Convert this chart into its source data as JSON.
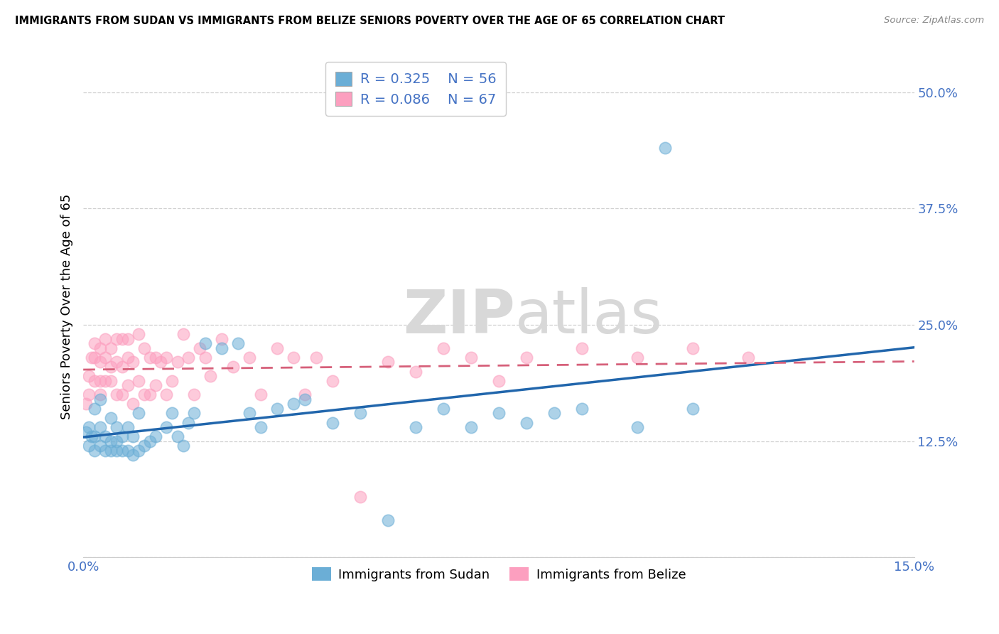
{
  "title": "IMMIGRANTS FROM SUDAN VS IMMIGRANTS FROM BELIZE SENIORS POVERTY OVER THE AGE OF 65 CORRELATION CHART",
  "source": "Source: ZipAtlas.com",
  "ylabel": "Seniors Poverty Over the Age of 65",
  "xlim": [
    0.0,
    0.15
  ],
  "ylim": [
    0.0,
    0.54
  ],
  "yticks": [
    0.0,
    0.125,
    0.25,
    0.375,
    0.5
  ],
  "ytick_labels": [
    "",
    "12.5%",
    "25.0%",
    "37.5%",
    "50.0%"
  ],
  "legend_R_sudan": "0.325",
  "legend_N_sudan": "56",
  "legend_R_belize": "0.086",
  "legend_N_belize": "67",
  "sudan_color": "#6baed6",
  "belize_color": "#fc9fbf",
  "sudan_line_color": "#2166ac",
  "belize_line_color": "#d6607a",
  "watermark": "ZIPatlas",
  "background_color": "#ffffff",
  "sudan_x": [
    0.0005,
    0.001,
    0.001,
    0.0015,
    0.002,
    0.002,
    0.002,
    0.003,
    0.003,
    0.003,
    0.004,
    0.004,
    0.005,
    0.005,
    0.005,
    0.006,
    0.006,
    0.006,
    0.007,
    0.007,
    0.008,
    0.008,
    0.009,
    0.009,
    0.01,
    0.01,
    0.011,
    0.012,
    0.013,
    0.015,
    0.016,
    0.017,
    0.018,
    0.019,
    0.02,
    0.022,
    0.025,
    0.028,
    0.03,
    0.032,
    0.035,
    0.038,
    0.04,
    0.045,
    0.05,
    0.055,
    0.06,
    0.065,
    0.07,
    0.075,
    0.08,
    0.085,
    0.09,
    0.1,
    0.105,
    0.11
  ],
  "sudan_y": [
    0.135,
    0.12,
    0.14,
    0.13,
    0.115,
    0.13,
    0.16,
    0.12,
    0.14,
    0.17,
    0.115,
    0.13,
    0.115,
    0.125,
    0.15,
    0.115,
    0.125,
    0.14,
    0.115,
    0.13,
    0.115,
    0.14,
    0.11,
    0.13,
    0.115,
    0.155,
    0.12,
    0.125,
    0.13,
    0.14,
    0.155,
    0.13,
    0.12,
    0.145,
    0.155,
    0.23,
    0.225,
    0.23,
    0.155,
    0.14,
    0.16,
    0.165,
    0.17,
    0.145,
    0.155,
    0.04,
    0.14,
    0.16,
    0.14,
    0.155,
    0.145,
    0.155,
    0.16,
    0.14,
    0.44,
    0.16
  ],
  "belize_x": [
    0.0005,
    0.001,
    0.001,
    0.0015,
    0.002,
    0.002,
    0.002,
    0.003,
    0.003,
    0.003,
    0.003,
    0.004,
    0.004,
    0.004,
    0.005,
    0.005,
    0.005,
    0.006,
    0.006,
    0.006,
    0.007,
    0.007,
    0.007,
    0.008,
    0.008,
    0.008,
    0.009,
    0.009,
    0.01,
    0.01,
    0.011,
    0.011,
    0.012,
    0.012,
    0.013,
    0.013,
    0.014,
    0.015,
    0.015,
    0.016,
    0.017,
    0.018,
    0.019,
    0.02,
    0.021,
    0.022,
    0.023,
    0.025,
    0.027,
    0.03,
    0.032,
    0.035,
    0.038,
    0.04,
    0.042,
    0.045,
    0.05,
    0.055,
    0.06,
    0.065,
    0.07,
    0.075,
    0.08,
    0.09,
    0.1,
    0.11,
    0.12
  ],
  "belize_y": [
    0.165,
    0.175,
    0.195,
    0.215,
    0.19,
    0.215,
    0.23,
    0.175,
    0.19,
    0.21,
    0.225,
    0.19,
    0.215,
    0.235,
    0.19,
    0.205,
    0.225,
    0.175,
    0.21,
    0.235,
    0.175,
    0.205,
    0.235,
    0.185,
    0.215,
    0.235,
    0.165,
    0.21,
    0.19,
    0.24,
    0.175,
    0.225,
    0.175,
    0.215,
    0.185,
    0.215,
    0.21,
    0.175,
    0.215,
    0.19,
    0.21,
    0.24,
    0.215,
    0.175,
    0.225,
    0.215,
    0.195,
    0.235,
    0.205,
    0.215,
    0.175,
    0.225,
    0.215,
    0.175,
    0.215,
    0.19,
    0.065,
    0.21,
    0.2,
    0.225,
    0.215,
    0.19,
    0.215,
    0.225,
    0.215,
    0.225,
    0.215
  ]
}
